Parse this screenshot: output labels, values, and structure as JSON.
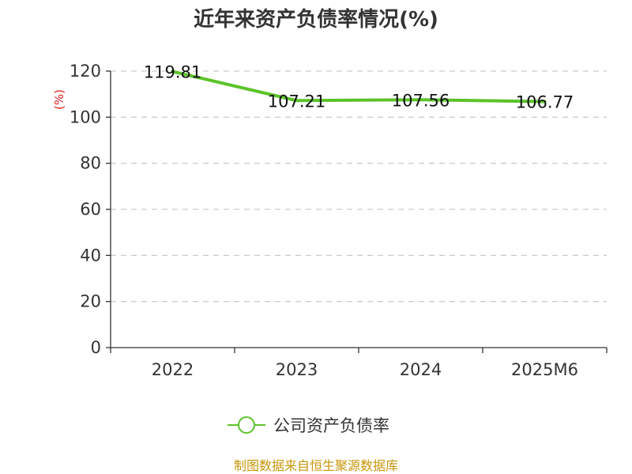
{
  "chart_data": {
    "type": "line",
    "title": "近年来资产负债率情况(%)",
    "ylabel": "(%)",
    "xlabel": "",
    "categories": [
      "2022",
      "2023",
      "2024",
      "2025M6"
    ],
    "series": [
      {
        "name": "公司资产负债率",
        "values": [
          119.81,
          107.21,
          107.56,
          106.77
        ],
        "color": "#5cc32a"
      }
    ],
    "ylim": [
      0,
      120
    ],
    "yticks": [
      0,
      20,
      40,
      60,
      80,
      100,
      120
    ],
    "grid": true,
    "legend": "bottom-center"
  },
  "source_text": "制图数据来自恒生聚源数据库"
}
